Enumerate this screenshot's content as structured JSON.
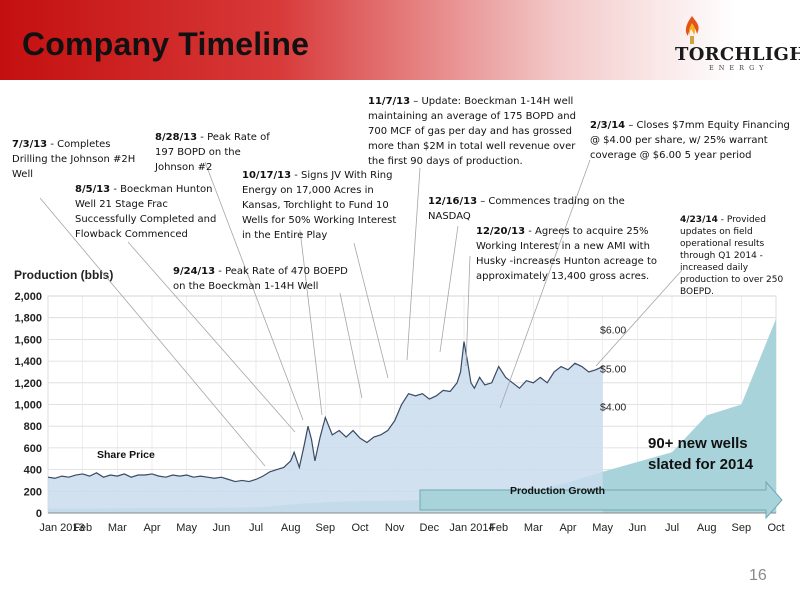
{
  "title": "Company Timeline",
  "logo": {
    "name": "TORCHLIGHT",
    "sub": "ENERGY"
  },
  "page_number": "16",
  "annotations": [
    {
      "date": "7/3/13",
      "text": " - Completes Drilling the Johnson #2H Well"
    },
    {
      "date": "8/5/13",
      "text": " - Boeckman Hunton Well 21 Stage Frac Successfully Completed and Flowback Commenced"
    },
    {
      "date": "8/28/13",
      "text": " - Peak Rate of 197 BOPD on the Johnson #2"
    },
    {
      "date": "9/24/13",
      "text": " - Peak Rate of 470 BOEPD on the Boeckman 1-14H Well"
    },
    {
      "date": "10/17/13",
      "text": " - Signs JV With Ring Energy on 17,000 Acres in Kansas, Torchlight to Fund 10 Wells for 50% Working Interest in the Entire Play"
    },
    {
      "date": "11/7/13",
      "text": " – Update: Boeckman 1-14H well maintaining an average of 175 BOPD and 700 MCF of gas per day and has grossed more than $2M in total well revenue over the first 90 days of production."
    },
    {
      "date": "12/16/13",
      "text": " – Commences trading on the NASDAQ"
    },
    {
      "date": "12/20/13",
      "text": " - Agrees to acquire 25% Working Interest in a new AMI with Husky -increases Hunton acreage to approximately 13,400 gross acres."
    },
    {
      "date": "2/3/14",
      "text": " – Closes $7mm Equity Financing @ $4.00 per share, w/ 25% warrant coverage @ $6.00 5 year period"
    },
    {
      "date": "4/23/14",
      "text": " - Provided updates on field operational results through Q1 2014 - increased daily production to over 250 BOEPD."
    }
  ],
  "labels": {
    "share_price": "Share Price",
    "production_growth": "Production Growth",
    "new_wells": "90+ new wells slated for 2014"
  },
  "chart_data": {
    "type": "area",
    "ylabel": "Production (bbls)",
    "ylim": [
      0,
      2000
    ],
    "y_ticks": [
      "0",
      "200",
      "400",
      "600",
      "800",
      "1,000",
      "1,200",
      "1,400",
      "1,600",
      "1,800",
      "2,000"
    ],
    "x_ticks": [
      "Jan 2013",
      "Feb",
      "Mar",
      "Apr",
      "May",
      "Jun",
      "Jul",
      "Aug",
      "Sep",
      "Oct",
      "Nov",
      "Dec",
      "Jan 2014",
      "Feb",
      "Mar",
      "Apr",
      "May",
      "Jun",
      "Jul",
      "Aug",
      "Sep",
      "Oct"
    ],
    "price_ticks": [
      {
        "label": "$6.00",
        "value": 1690
      },
      {
        "label": "$5.00",
        "value": 1330
      },
      {
        "label": "$4.00",
        "value": 980
      }
    ],
    "series": [
      {
        "name": "Share Price",
        "x": [
          0,
          0.2,
          0.4,
          0.6,
          0.8,
          1.0,
          1.2,
          1.4,
          1.6,
          1.8,
          2.0,
          2.2,
          2.4,
          2.6,
          2.8,
          3.0,
          3.2,
          3.4,
          3.6,
          3.8,
          4.0,
          4.2,
          4.4,
          4.6,
          4.8,
          5.0,
          5.2,
          5.4,
          5.6,
          5.8,
          6.0,
          6.2,
          6.4,
          6.6,
          6.8,
          7.0,
          7.1,
          7.25,
          7.4,
          7.5,
          7.6,
          7.7,
          7.85,
          8.0,
          8.2,
          8.4,
          8.6,
          8.8,
          9.0,
          9.2,
          9.4,
          9.6,
          9.8,
          10.0,
          10.2,
          10.4,
          10.6,
          10.8,
          11.0,
          11.2,
          11.4,
          11.6,
          11.8,
          11.9,
          12.0,
          12.1,
          12.2,
          12.3,
          12.45,
          12.6,
          12.8,
          13.0,
          13.2,
          13.4,
          13.6,
          13.8,
          14.0,
          14.2,
          14.4,
          14.6,
          14.8,
          15.0,
          15.2,
          15.4,
          15.6,
          15.8,
          16.0
        ],
        "values": [
          330,
          320,
          340,
          330,
          350,
          360,
          340,
          370,
          330,
          350,
          340,
          360,
          330,
          350,
          350,
          360,
          340,
          330,
          350,
          340,
          350,
          330,
          340,
          330,
          320,
          330,
          310,
          290,
          300,
          290,
          310,
          340,
          380,
          400,
          420,
          480,
          560,
          420,
          640,
          800,
          680,
          480,
          700,
          880,
          720,
          760,
          700,
          760,
          690,
          650,
          700,
          720,
          760,
          850,
          1000,
          1100,
          1080,
          1100,
          1050,
          1080,
          1130,
          1120,
          1200,
          1300,
          1580,
          1400,
          1200,
          1150,
          1250,
          1180,
          1200,
          1350,
          1250,
          1200,
          1150,
          1220,
          1200,
          1250,
          1200,
          1300,
          1350,
          1320,
          1380,
          1350,
          1300,
          1320,
          1350
        ]
      },
      {
        "name": "Production Growth",
        "x": [
          0,
          3,
          6,
          7,
          8,
          9,
          10,
          11,
          12,
          13,
          14,
          15,
          16,
          17,
          18,
          19,
          20,
          21
        ],
        "values": [
          40,
          45,
          50,
          80,
          100,
          110,
          115,
          120,
          135,
          140,
          200,
          280,
          380,
          470,
          560,
          900,
          1000,
          1790
        ]
      }
    ]
  }
}
